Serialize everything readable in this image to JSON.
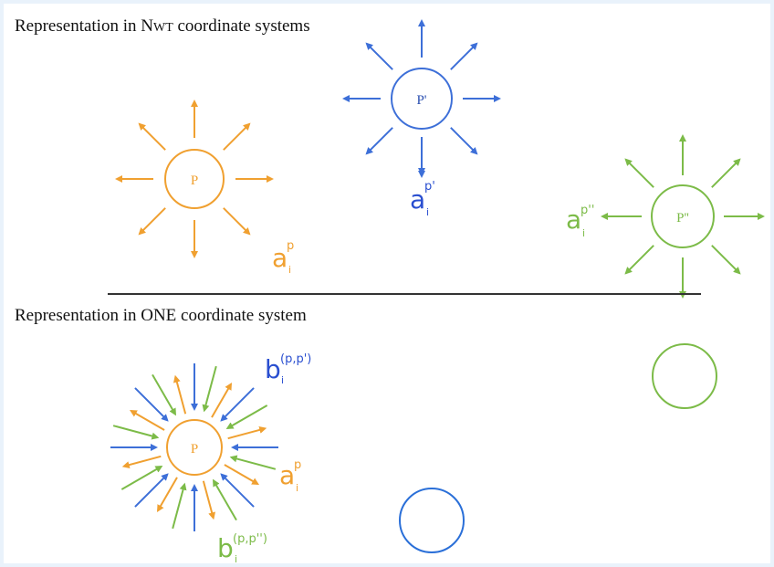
{
  "top": {
    "title": {
      "before": "Representation in ",
      "n": "N",
      "wt": "WT",
      "after": " coordinate systems"
    },
    "nodes": [
      {
        "label": "P",
        "vector": {
          "base": "a",
          "sup": "p",
          "sub": "i"
        }
      },
      {
        "label": "P'",
        "vector": {
          "base": "a",
          "sup": "p'",
          "sub": "i"
        }
      },
      {
        "label": "P''",
        "vector": {
          "base": "a",
          "sup": "p''",
          "sub": "i"
        }
      }
    ]
  },
  "bottom": {
    "title": "Representation in ONE coordinate system",
    "node": {
      "label": "P"
    },
    "vectors": [
      {
        "base": "b",
        "sup": "(p,p')",
        "sub": "i"
      },
      {
        "base": "a",
        "sup": "p",
        "sub": "i"
      },
      {
        "base": "b",
        "sup": "(p,p'')",
        "sub": "i"
      }
    ]
  }
}
